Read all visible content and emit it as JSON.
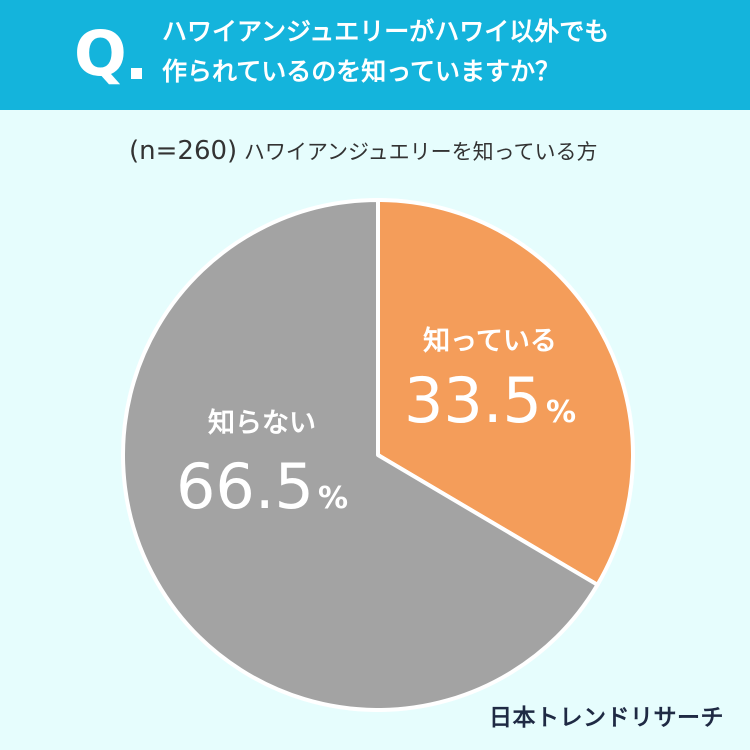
{
  "header": {
    "q_label": "Q",
    "question_line1": "ハワイアンジュエリーがハワイ以外でも",
    "question_line2": "作られているのを知っていますか？"
  },
  "subtitle": {
    "sample": "(n=260)",
    "text": "ハワイアンジュエリーを知っている方"
  },
  "brand": "日本トレンドリサーチ",
  "colors": {
    "header": "#14b4dc",
    "background": "#e6fdfd",
    "know": "#f49d5a",
    "dont_know": "#a3a3a3"
  },
  "chart_data": {
    "type": "pie",
    "slices": [
      {
        "label": "知っている",
        "value": 33.5,
        "display": "33.5",
        "unit": "%",
        "color": "#f49d5a"
      },
      {
        "label": "知らない",
        "value": 66.5,
        "display": "66.5",
        "unit": "%",
        "color": "#a3a3a3"
      }
    ],
    "start": "12 o'clock",
    "direction": "clockwise"
  }
}
